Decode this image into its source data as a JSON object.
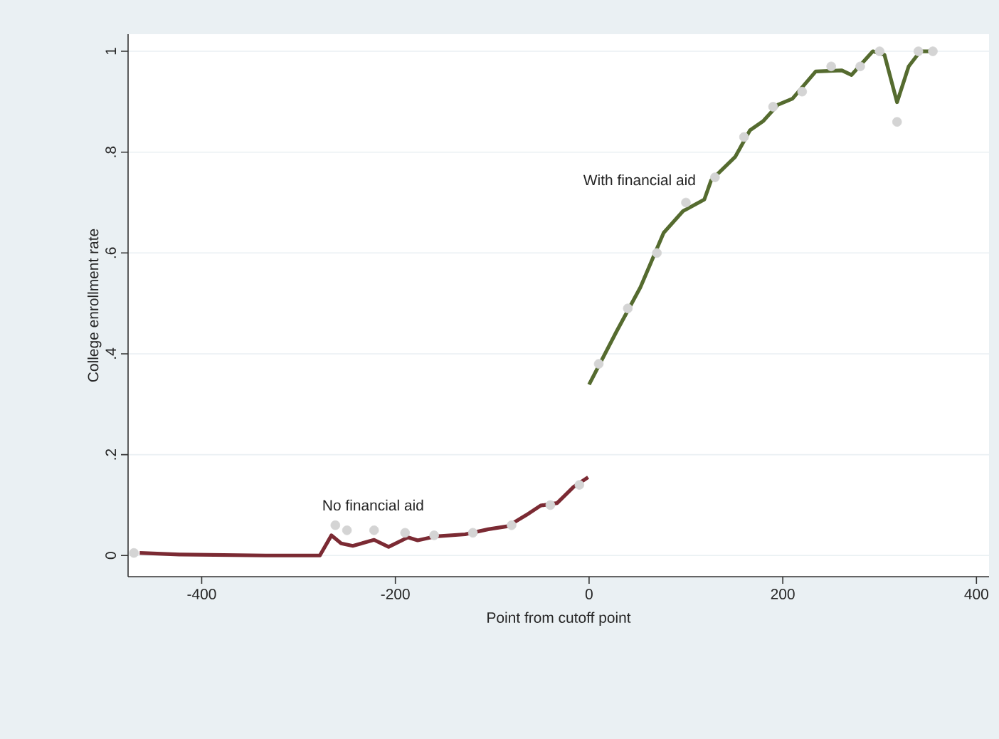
{
  "chart_data": {
    "type": "line",
    "xlabel": "Point from cutoff point",
    "ylabel": "College enrollment rate",
    "xlim": [
      -476,
      413
    ],
    "ylim": [
      -0.042,
      1.034
    ],
    "xticks": [
      -400,
      -200,
      0,
      200,
      400
    ],
    "yticks": [
      {
        "value": 0,
        "label": "0"
      },
      {
        "value": 0.2,
        "label": ".2"
      },
      {
        "value": 0.4,
        "label": ".4"
      },
      {
        "value": 0.6,
        "label": ".6"
      },
      {
        "value": 0.8,
        "label": ".8"
      },
      {
        "value": 1,
        "label": "1"
      }
    ],
    "grid": "y",
    "series": [
      {
        "type": "scatter",
        "marker": "circle",
        "color": "#d4d4d4",
        "x": [
          -470,
          -262,
          -250,
          -222,
          -190,
          -160,
          -120,
          -80,
          -40,
          -10,
          10,
          40,
          70,
          100,
          130,
          160,
          190,
          220,
          250,
          280,
          300,
          318,
          340,
          355
        ],
        "values": [
          0.005,
          0.06,
          0.05,
          0.05,
          0.045,
          0.04,
          0.045,
          0.06,
          0.1,
          0.14,
          0.38,
          0.49,
          0.6,
          0.7,
          0.75,
          0.83,
          0.89,
          0.92,
          0.97,
          0.97,
          1.0,
          0.86,
          1.0,
          1.0
        ]
      },
      {
        "type": "line",
        "name": "No financial aid",
        "color": "#7b2a33",
        "x": [
          -464,
          -423,
          -334,
          -278,
          -266,
          -256,
          -244,
          -222,
          -207,
          -187,
          -177,
          -158,
          -128,
          -104,
          -84,
          -65,
          -50,
          -33,
          -16,
          -1
        ],
        "values": [
          0.005,
          0.002,
          0,
          0,
          0.04,
          0.024,
          0.019,
          0.031,
          0.017,
          0.036,
          0.03,
          0.038,
          0.042,
          0.052,
          0.058,
          0.08,
          0.099,
          0.104,
          0.136,
          0.155
        ]
      },
      {
        "name": "With financial aid",
        "color": "#556b2f",
        "x": [
          0,
          28,
          53,
          77,
          97,
          119,
          126,
          151,
          166,
          180,
          195,
          210,
          234,
          261,
          271,
          293,
          305,
          318,
          330,
          342,
          354
        ],
        "values": [
          0.339,
          0.443,
          0.532,
          0.64,
          0.683,
          0.706,
          0.744,
          0.791,
          0.843,
          0.862,
          0.894,
          0.906,
          0.96,
          0.962,
          0.953,
          1.0,
          0.993,
          0.899,
          0.97,
          1.0,
          1.0
        ]
      }
    ]
  }
}
